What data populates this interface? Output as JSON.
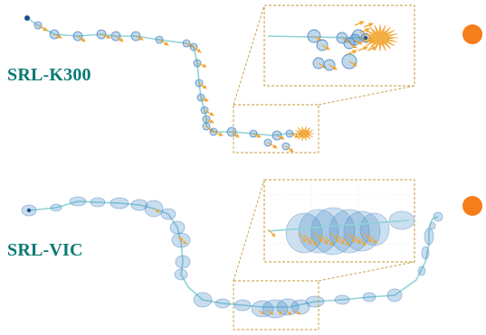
{
  "panels": [
    {
      "label": "SRL-K300",
      "trajectory_style": "positions-with-velocity-arrows"
    },
    {
      "label": "SRL-VIC",
      "trajectory_style": "uncertainty-ellipses"
    }
  ],
  "colors": {
    "label_text": "#0a7a75",
    "path_line": "#8fd3d6",
    "covariance_fill": "#4a90c8",
    "covariance_stroke": "#5b8fc4",
    "arrow": "#f2a531",
    "marker": "#f57d1a",
    "inset_border": "#c49a3a",
    "start_dot": "#1e4f8c"
  },
  "icons": {
    "start": "start-dot-icon",
    "bullet": "orange-bullet-icon"
  }
}
